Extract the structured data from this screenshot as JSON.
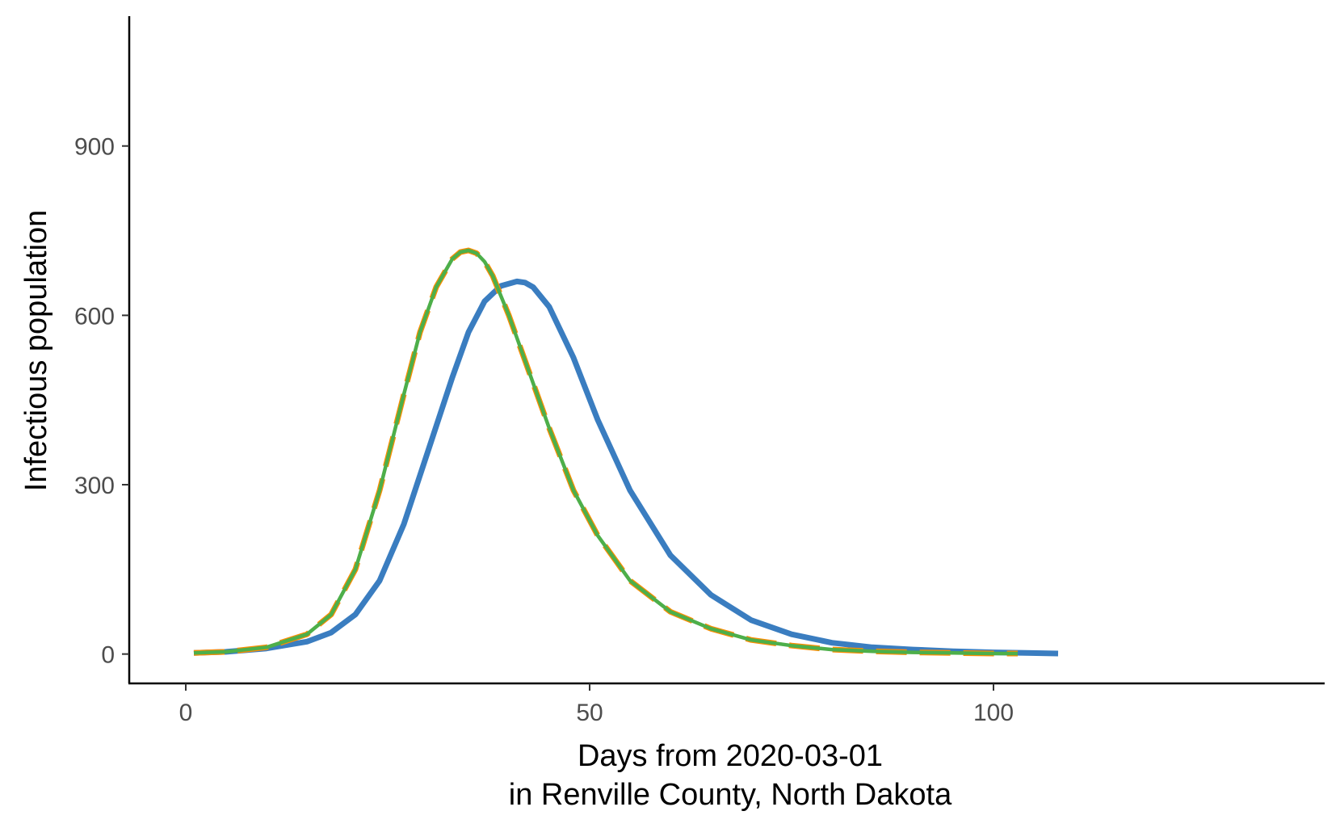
{
  "chart_data": {
    "type": "line",
    "title": "",
    "xlabel": "Days from 2020-03-01",
    "xlabel_line2": "in Renville County, North Dakota",
    "ylabel": "Infectious population",
    "xlim": [
      -7,
      141
    ],
    "ylim": [
      -52,
      1130
    ],
    "x_ticks": [
      0,
      50,
      100
    ],
    "x_tick_labels": [
      "0",
      "50",
      "100"
    ],
    "y_ticks": [
      0,
      300,
      600,
      900
    ],
    "y_tick_labels": [
      "0",
      "300",
      "600",
      "900"
    ],
    "grid": false,
    "legend": "none",
    "series": [
      {
        "color": "#3a7dc0",
        "dash": "solid",
        "x": [
          1,
          5,
          10,
          15,
          18,
          21,
          24,
          27,
          30,
          33,
          35,
          37,
          39,
          41,
          42,
          43,
          45,
          48,
          51,
          55,
          60,
          65,
          70,
          75,
          80,
          85,
          90,
          95,
          100,
          104,
          108
        ],
        "y": [
          2,
          4,
          10,
          22,
          38,
          70,
          130,
          230,
          360,
          490,
          570,
          625,
          652,
          660,
          658,
          650,
          615,
          525,
          415,
          290,
          175,
          105,
          60,
          35,
          20,
          12,
          8,
          5,
          3,
          2,
          1
        ]
      },
      {
        "color": "#d7191c",
        "dash": "dashed",
        "x": [
          1,
          5,
          10,
          15,
          18,
          21,
          24,
          27,
          29,
          31,
          33,
          34,
          35,
          36,
          37,
          38,
          40,
          42,
          45,
          48,
          51,
          55,
          60,
          65,
          70,
          75,
          80,
          85,
          90,
          95,
          100,
          103
        ],
        "y": [
          2,
          4,
          12,
          35,
          70,
          150,
          290,
          460,
          570,
          650,
          700,
          712,
          715,
          710,
          695,
          670,
          600,
          520,
          400,
          290,
          210,
          130,
          75,
          45,
          25,
          15,
          8,
          5,
          3,
          2,
          1,
          1
        ]
      },
      {
        "color": "#ff8c00",
        "dash": "longdash",
        "x": [
          1,
          5,
          10,
          15,
          18,
          21,
          24,
          27,
          29,
          31,
          33,
          34,
          35,
          36,
          37,
          38,
          40,
          42,
          45,
          48,
          51,
          55,
          60,
          65,
          70,
          75,
          80,
          85,
          90,
          95,
          100,
          103
        ],
        "y": [
          2,
          4,
          12,
          35,
          70,
          150,
          290,
          460,
          570,
          650,
          700,
          712,
          715,
          710,
          695,
          670,
          600,
          520,
          400,
          290,
          210,
          130,
          75,
          45,
          25,
          15,
          8,
          5,
          3,
          2,
          1,
          1
        ]
      },
      {
        "color": "#4daf4a",
        "dash": "solid",
        "x": [
          1,
          5,
          10,
          15,
          18,
          21,
          24,
          27,
          29,
          31,
          33,
          34,
          35,
          36,
          37,
          38,
          40,
          42,
          45,
          48,
          51,
          55,
          60,
          65,
          70,
          75,
          80,
          85,
          90,
          95,
          100,
          103
        ],
        "y": [
          2,
          4,
          12,
          35,
          70,
          150,
          290,
          460,
          570,
          650,
          700,
          712,
          715,
          710,
          695,
          670,
          600,
          520,
          400,
          290,
          210,
          130,
          75,
          45,
          25,
          15,
          8,
          5,
          3,
          2,
          1,
          1
        ]
      }
    ]
  }
}
